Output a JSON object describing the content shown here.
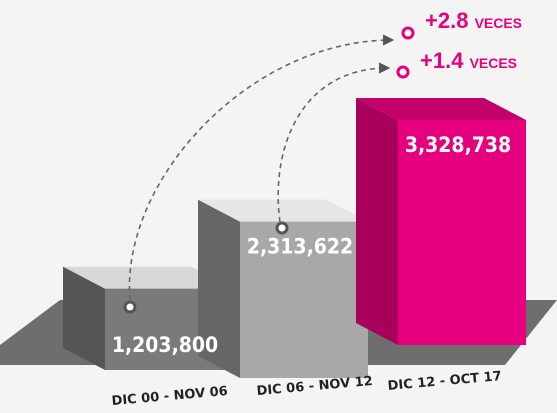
{
  "chart_data": {
    "type": "bar3d",
    "categories": [
      "DIC 00 - NOV 06",
      "DIC 06 - NOV 12",
      "DIC 12 - OCT 17"
    ],
    "values": [
      1203800,
      2313622,
      3328738
    ],
    "value_labels": [
      "1,203,800",
      "2,313,622",
      "3,328,738"
    ],
    "colors": [
      "#7a7a7a",
      "#a8a8a8",
      "#e6007e"
    ],
    "annotations": [
      {
        "text": "+2.8",
        "suffix": "VECES"
      },
      {
        "text": "+1.4",
        "suffix": "VECES"
      }
    ]
  }
}
